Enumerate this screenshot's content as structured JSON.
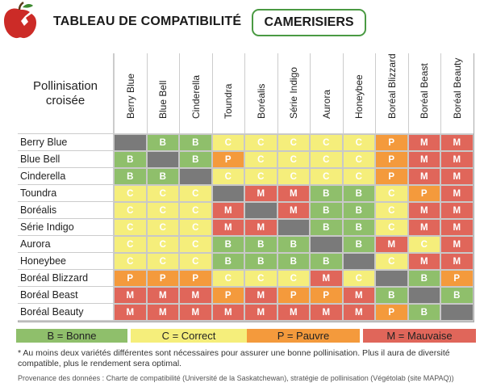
{
  "header": {
    "title": "TABLEAU DE COMPATIBILITÉ",
    "badge": "CAMERISIERS"
  },
  "table": {
    "corner_label": "Pollinisation croisée",
    "columns": [
      "Berry Blue",
      "Blue Bell",
      "Cinderella",
      "Toundra",
      "Boréalis",
      "Série Indigo",
      "Aurora",
      "Honeybee",
      "Boréal Blizzard",
      "Boréal Beast",
      "Boréal Beauty"
    ],
    "rows": [
      {
        "name": "Berry Blue",
        "cells": [
          "",
          "B",
          "B",
          "C",
          "C",
          "C",
          "C",
          "C",
          "P",
          "M",
          "M"
        ]
      },
      {
        "name": "Blue Bell",
        "cells": [
          "B",
          "",
          "B",
          "P",
          "C",
          "C",
          "C",
          "C",
          "P",
          "M",
          "M"
        ]
      },
      {
        "name": "Cinderella",
        "cells": [
          "B",
          "B",
          "",
          "C",
          "C",
          "C",
          "C",
          "C",
          "P",
          "M",
          "M"
        ]
      },
      {
        "name": "Toundra",
        "cells": [
          "C",
          "C",
          "C",
          "",
          "M",
          "M",
          "B",
          "B",
          "C",
          "P",
          "M"
        ]
      },
      {
        "name": "Boréalis",
        "cells": [
          "C",
          "C",
          "C",
          "M",
          "",
          "M",
          "B",
          "B",
          "C",
          "M",
          "M"
        ]
      },
      {
        "name": "Série Indigo",
        "cells": [
          "C",
          "C",
          "C",
          "M",
          "M",
          "",
          "B",
          "B",
          "C",
          "M",
          "M"
        ]
      },
      {
        "name": "Aurora",
        "cells": [
          "C",
          "C",
          "C",
          "B",
          "B",
          "B",
          "",
          "B",
          "M",
          "C",
          "M"
        ]
      },
      {
        "name": "Honeybee",
        "cells": [
          "C",
          "C",
          "C",
          "B",
          "B",
          "B",
          "B",
          "",
          "C",
          "M",
          "M"
        ]
      },
      {
        "name": "Boréal Blizzard",
        "cells": [
          "P",
          "P",
          "P",
          "C",
          "C",
          "C",
          "M",
          "C",
          "",
          "B",
          "P"
        ]
      },
      {
        "name": "Boréal Beast",
        "cells": [
          "M",
          "M",
          "M",
          "P",
          "M",
          "P",
          "P",
          "M",
          "B",
          "",
          "B"
        ]
      },
      {
        "name": "Boréal Beauty",
        "cells": [
          "M",
          "M",
          "M",
          "M",
          "M",
          "M",
          "M",
          "M",
          "P",
          "B",
          ""
        ]
      }
    ]
  },
  "legend": [
    {
      "label": "B = Bonne",
      "color": "#8fbf6b"
    },
    {
      "label": "C = Correct",
      "color": "#f5ee7b"
    },
    {
      "label": "P = Pauvre",
      "color": "#f49a3c"
    },
    {
      "label": "M = Mauvaise",
      "color": "#e0665a"
    }
  ],
  "footnote": "* Au moins deux variétés différentes sont nécessaires pour assurer une bonne pollinisation. Plus il aura de diversité compatible, plus le rendement sera optimal.",
  "source": "Provenance des données : Charte de compatibilité (Université de la Saskatchewan), stratégie de pollinisation (Végétolab (site MAPAQ))"
}
